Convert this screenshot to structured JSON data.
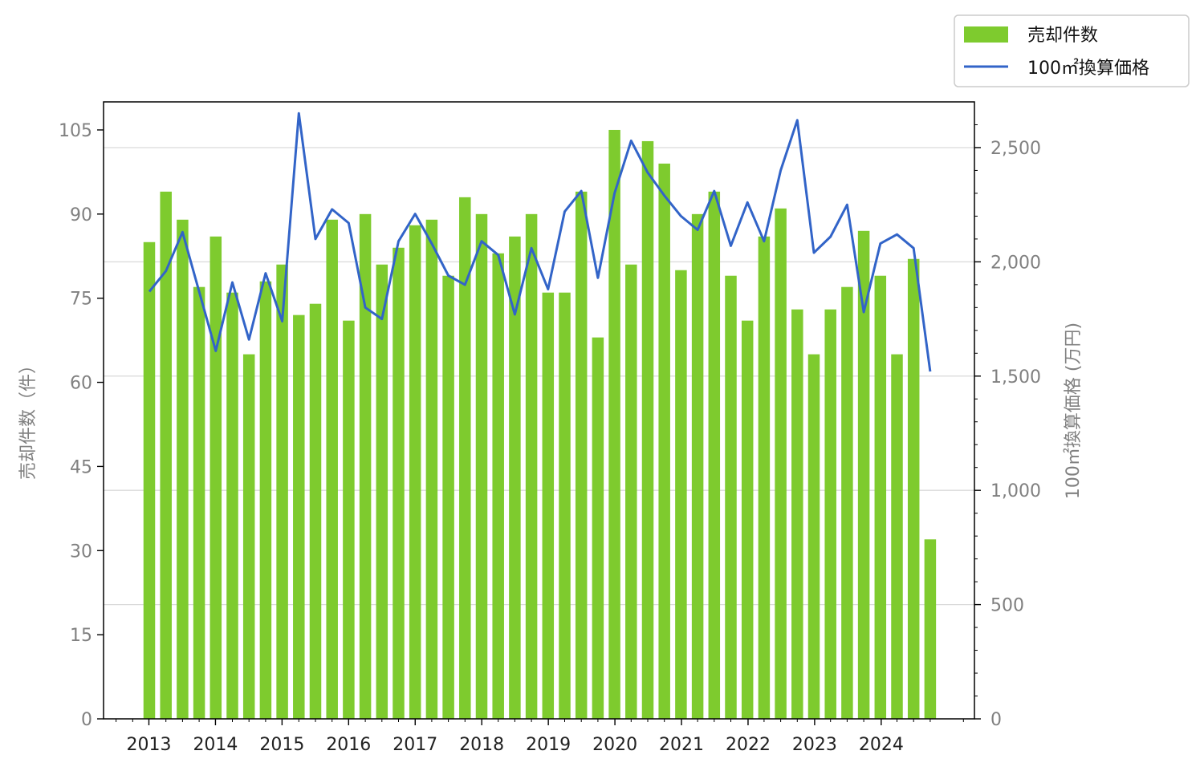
{
  "chart_data": {
    "type": "bar",
    "legend_position": "top-right",
    "grid": true,
    "x_ticks": [
      "2013",
      "2014",
      "2015",
      "2016",
      "2017",
      "2018",
      "2019",
      "2020",
      "2021",
      "2022",
      "2023",
      "2024"
    ],
    "left_axis": {
      "label": "売却件数（件）",
      "ylim": [
        0,
        110
      ],
      "ticks": [
        "0",
        "15",
        "30",
        "45",
        "60",
        "75",
        "90",
        "105"
      ]
    },
    "right_axis": {
      "label": "100㎡換算価格 (万円)",
      "ylim": [
        0,
        2700
      ],
      "ticks": [
        "0",
        "500",
        "1,000",
        "1,500",
        "2,000",
        "2,500"
      ]
    },
    "series": [
      {
        "name": "売却件数",
        "kind": "bar",
        "axis": "left",
        "color": "#7ecb2e",
        "values": [
          85,
          94,
          89,
          77,
          86,
          76,
          65,
          78,
          81,
          72,
          74,
          89,
          71,
          90,
          81,
          84,
          88,
          89,
          79,
          93,
          90,
          83,
          86,
          90,
          76,
          76,
          94,
          68,
          105,
          81,
          103,
          99,
          80,
          90,
          94,
          79,
          71,
          86,
          91,
          73,
          65,
          73,
          77,
          87,
          79,
          65,
          82,
          32
        ]
      },
      {
        "name": "100㎡換算価格",
        "kind": "line",
        "axis": "right",
        "color": "#3264c8",
        "values": [
          1870,
          1960,
          2130,
          1870,
          1610,
          1910,
          1660,
          1950,
          1740,
          2650,
          2100,
          2230,
          2170,
          1800,
          1750,
          2090,
          2210,
          2080,
          1940,
          1900,
          2090,
          2030,
          1770,
          2060,
          1880,
          2220,
          2310,
          1930,
          2300,
          2530,
          2390,
          2290,
          2200,
          2140,
          2310,
          2070,
          2260,
          2090,
          2400,
          2620,
          2040,
          2110,
          2250,
          1780,
          2080,
          2120,
          2060,
          1520
        ]
      }
    ]
  }
}
